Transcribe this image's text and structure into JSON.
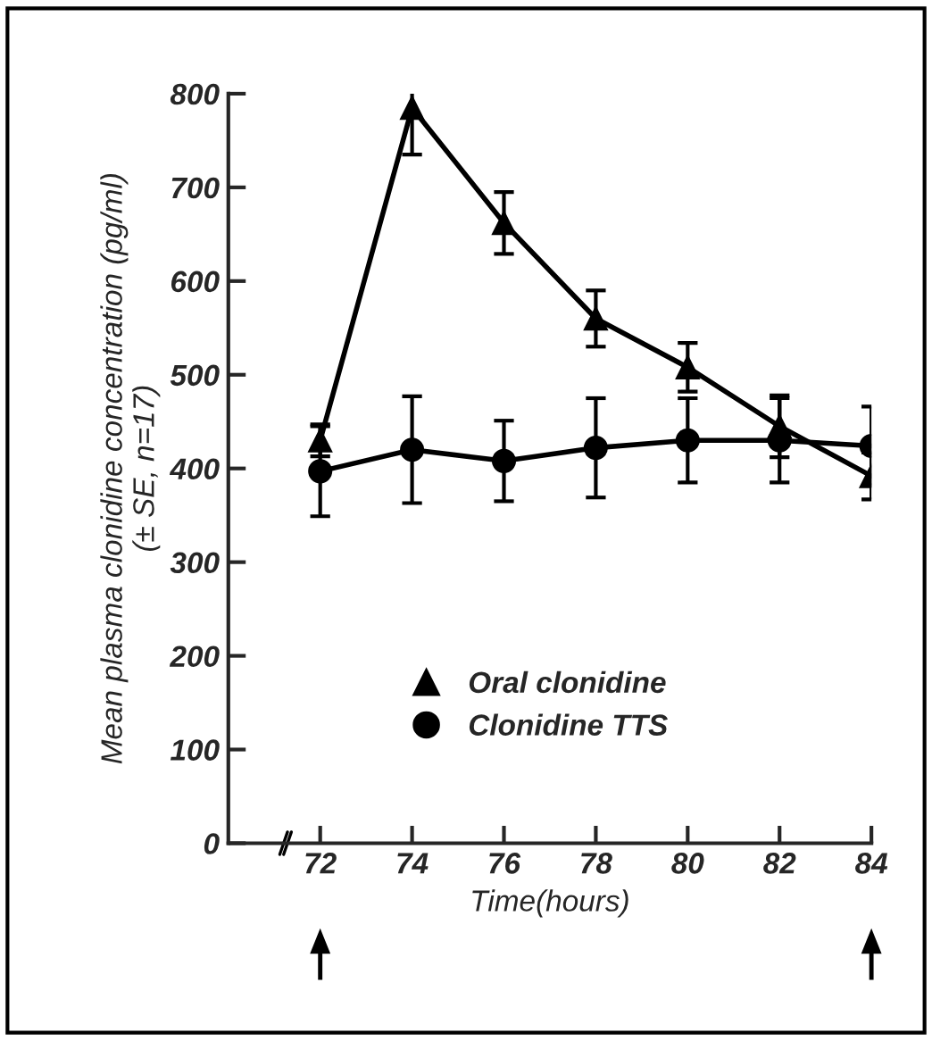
{
  "chart_data": {
    "type": "line",
    "xlabel": "Time(hours)",
    "ylabel": "Mean plasma clonidine concentration (pg/ml)\n(± SE, n=17)",
    "x": [
      72,
      74,
      76,
      78,
      80,
      82,
      84
    ],
    "series": [
      {
        "name": "Oral clonidine",
        "color": "#000000",
        "marker": "triangle",
        "values": [
          430,
          785,
          662,
          560,
          508,
          445,
          392
        ],
        "errors": [
          17,
          50,
          33,
          30,
          26,
          33,
          25
        ]
      },
      {
        "name": "Clonidine TTS",
        "color": "#000000",
        "marker": "circle",
        "values": [
          397,
          420,
          408,
          422,
          430,
          430,
          424
        ],
        "errors": [
          48,
          57,
          43,
          53,
          45,
          45,
          42
        ]
      }
    ],
    "xlim": [
      70,
      84
    ],
    "xticks": [
      72,
      74,
      76,
      78,
      80,
      82,
      84
    ],
    "ylim": [
      0,
      800
    ],
    "yticks": [
      0,
      100,
      200,
      300,
      400,
      500,
      600,
      700,
      800
    ],
    "grid": false,
    "legend": "bottom left",
    "line_style": "solid"
  }
}
